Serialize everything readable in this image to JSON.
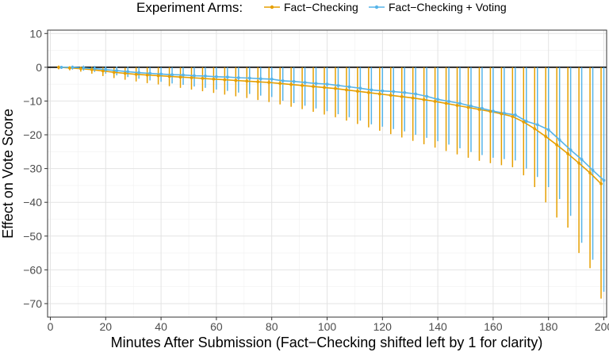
{
  "chart_data": {
    "type": "line",
    "title": "",
    "xlabel": "Minutes After Submission (Fact−Checking shifted left by 1 for clarity)",
    "ylabel": "Effect on Vote Score",
    "xlim": [
      -1,
      201
    ],
    "ylim": [
      -74,
      11
    ],
    "x_ticks": [
      0,
      20,
      40,
      60,
      80,
      100,
      120,
      140,
      160,
      180,
      200
    ],
    "y_ticks": [
      10,
      0,
      -10,
      -20,
      -30,
      -40,
      -50,
      -60,
      -70
    ],
    "x_tick_labels": [
      "0",
      "20",
      "40",
      "60",
      "80",
      "100",
      "120",
      "140",
      "160",
      "180",
      "200"
    ],
    "y_tick_labels": [
      "10",
      "0",
      "−10",
      "−20",
      "−30",
      "−40",
      "−50",
      "−60",
      "−70"
    ],
    "grid": true,
    "reference_line_y": 0,
    "legend": {
      "title": "Experiment Arms:",
      "position": "top",
      "entries": [
        "Fact−Checking",
        "Fact−Checking + Voting"
      ]
    },
    "series": [
      {
        "name": "Fact−Checking",
        "color": "#E69F00",
        "x": [
          3,
          7,
          11,
          15,
          19,
          23,
          27,
          31,
          35,
          39,
          43,
          47,
          51,
          55,
          59,
          63,
          67,
          71,
          75,
          79,
          83,
          87,
          91,
          95,
          99,
          103,
          107,
          111,
          115,
          119,
          123,
          127,
          131,
          135,
          139,
          143,
          147,
          151,
          155,
          159,
          163,
          167,
          171,
          175,
          179,
          183,
          187,
          191,
          195,
          199
        ],
        "y": [
          0,
          -0.2,
          -0.4,
          -0.7,
          -1.1,
          -1.5,
          -1.8,
          -2.1,
          -2.3,
          -2.5,
          -2.7,
          -2.9,
          -3.1,
          -3.3,
          -3.5,
          -3.7,
          -3.9,
          -4.1,
          -4.3,
          -4.5,
          -4.8,
          -5.1,
          -5.4,
          -5.7,
          -6.0,
          -6.3,
          -6.7,
          -7.1,
          -7.5,
          -7.9,
          -8.3,
          -8.7,
          -9.1,
          -9.6,
          -10.1,
          -10.7,
          -11.3,
          -11.9,
          -12.5,
          -13.1,
          -13.8,
          -14.6,
          -16.2,
          -18.2,
          -20.5,
          -23.0,
          -25.6,
          -28.4,
          -31.3,
          -34.5
        ],
        "lower": [
          -0.6,
          -0.9,
          -1.3,
          -1.9,
          -2.6,
          -3.2,
          -3.7,
          -4.2,
          -4.7,
          -5.1,
          -5.6,
          -6.1,
          -6.6,
          -7.1,
          -7.6,
          -8.1,
          -8.6,
          -9.1,
          -9.7,
          -10.3,
          -11.0,
          -11.7,
          -12.4,
          -13.2,
          -14.0,
          -14.8,
          -15.8,
          -16.8,
          -17.8,
          -18.8,
          -19.8,
          -20.8,
          -21.8,
          -22.8,
          -23.8,
          -24.8,
          -25.8,
          -26.8,
          -27.7,
          -28.4,
          -29.0,
          -29.6,
          -32.0,
          -35.5,
          -40.0,
          -44.5,
          -47.5,
          -55.0,
          -59.5,
          -68.5
        ],
        "upper": [
          0.5,
          0.3,
          0.2,
          0.1,
          0,
          -0.1,
          -0.1,
          0,
          0,
          0,
          0,
          0,
          0,
          0,
          0,
          0,
          0,
          0,
          0,
          0,
          0,
          0,
          0,
          0,
          0,
          0,
          0,
          0,
          0,
          0,
          0,
          0,
          0,
          0,
          0,
          0,
          0,
          0,
          0,
          0,
          0,
          0,
          0,
          0,
          0,
          0,
          0,
          0,
          0,
          0
        ]
      },
      {
        "name": "Fact−Checking + Voting",
        "color": "#56B4E9",
        "x": [
          4,
          8,
          12,
          16,
          20,
          24,
          28,
          32,
          36,
          40,
          44,
          48,
          52,
          56,
          60,
          64,
          68,
          72,
          76,
          80,
          84,
          88,
          92,
          96,
          100,
          104,
          108,
          112,
          116,
          120,
          124,
          128,
          132,
          136,
          140,
          144,
          148,
          152,
          156,
          160,
          164,
          168,
          172,
          176,
          180,
          184,
          188,
          192,
          196,
          200
        ],
        "y": [
          0,
          0,
          -0.2,
          -0.4,
          -0.7,
          -1.0,
          -1.3,
          -1.6,
          -1.8,
          -2.0,
          -2.2,
          -2.3,
          -2.5,
          -2.6,
          -2.8,
          -2.9,
          -3.1,
          -3.2,
          -3.4,
          -3.5,
          -4.0,
          -4.2,
          -4.5,
          -4.8,
          -5.0,
          -5.4,
          -5.8,
          -6.2,
          -6.7,
          -7.0,
          -7.2,
          -7.5,
          -7.9,
          -8.6,
          -9.5,
          -10.1,
          -10.7,
          -11.5,
          -12.2,
          -13.0,
          -13.6,
          -14.1,
          -16.0,
          -17.0,
          -18.5,
          -21.5,
          -24.5,
          -27.3,
          -30.5,
          -33.5
        ],
        "lower": [
          -0.5,
          -0.7,
          -1.0,
          -1.4,
          -1.9,
          -2.4,
          -2.9,
          -3.4,
          -3.9,
          -4.3,
          -4.8,
          -5.2,
          -5.7,
          -6.1,
          -6.6,
          -7.0,
          -7.5,
          -7.9,
          -8.4,
          -8.8,
          -9.9,
          -10.6,
          -11.4,
          -12.2,
          -13.0,
          -13.9,
          -14.8,
          -15.8,
          -16.9,
          -17.6,
          -18.3,
          -19.0,
          -20.0,
          -20.9,
          -21.9,
          -22.9,
          -24.0,
          -25.1,
          -26.0,
          -26.8,
          -27.2,
          -27.6,
          -30.0,
          -32.5,
          -35.5,
          -39.0,
          -44.0,
          -52.0,
          -57.0,
          -66.5
        ],
        "upper": [
          0.4,
          0.5,
          0.5,
          0.4,
          0.3,
          0.2,
          0.1,
          0,
          0,
          0,
          0,
          0,
          0,
          0,
          0,
          0,
          0,
          0,
          0,
          0,
          0,
          0,
          0,
          0,
          0,
          0,
          0,
          0,
          0,
          0,
          0,
          0,
          0,
          0,
          0,
          0,
          0,
          0,
          0,
          0,
          0,
          0,
          0,
          0,
          0,
          0,
          0,
          0,
          0,
          0
        ]
      }
    ]
  }
}
